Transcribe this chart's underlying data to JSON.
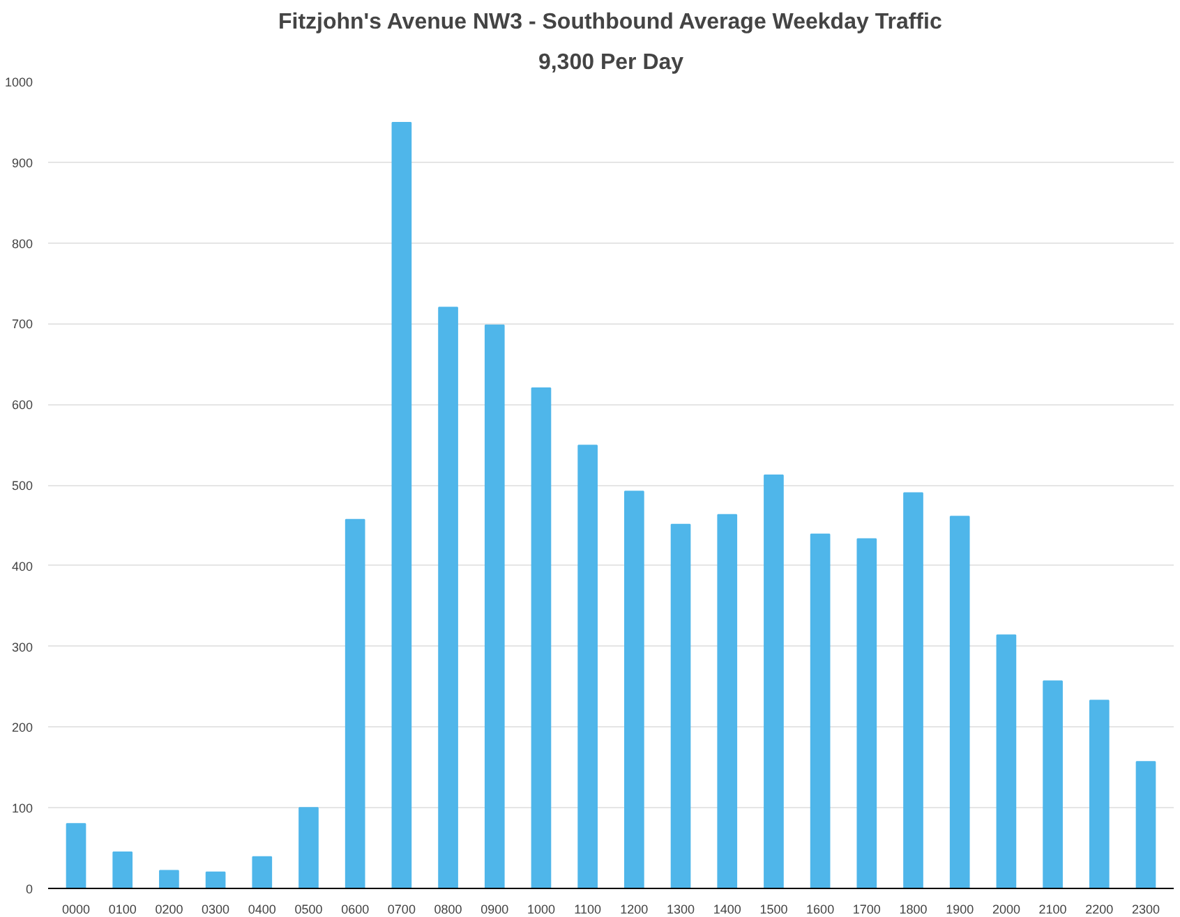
{
  "chart_data": {
    "type": "bar",
    "title": "Fitzjohn's Avenue NW3 - Southbound Average Weekday Traffic",
    "subtitle": "9,300 Per Day",
    "categories": [
      "0000",
      "0100",
      "0200",
      "0300",
      "0400",
      "0500",
      "0600",
      "0700",
      "0800",
      "0900",
      "1000",
      "1100",
      "1200",
      "1300",
      "1400",
      "1500",
      "1600",
      "1700",
      "1800",
      "1900",
      "2000",
      "2100",
      "2200",
      "2300"
    ],
    "values": [
      80,
      45,
      22,
      20,
      39,
      100,
      457,
      949,
      720,
      698,
      620,
      549,
      492,
      451,
      463,
      512,
      439,
      433,
      490,
      461,
      314,
      257,
      233,
      157
    ],
    "color": "#4fb6ea",
    "ylim": [
      0,
      1000
    ],
    "yticks": [
      0,
      100,
      200,
      300,
      400,
      500,
      600,
      700,
      800,
      900,
      1000
    ],
    "grid": "y"
  }
}
